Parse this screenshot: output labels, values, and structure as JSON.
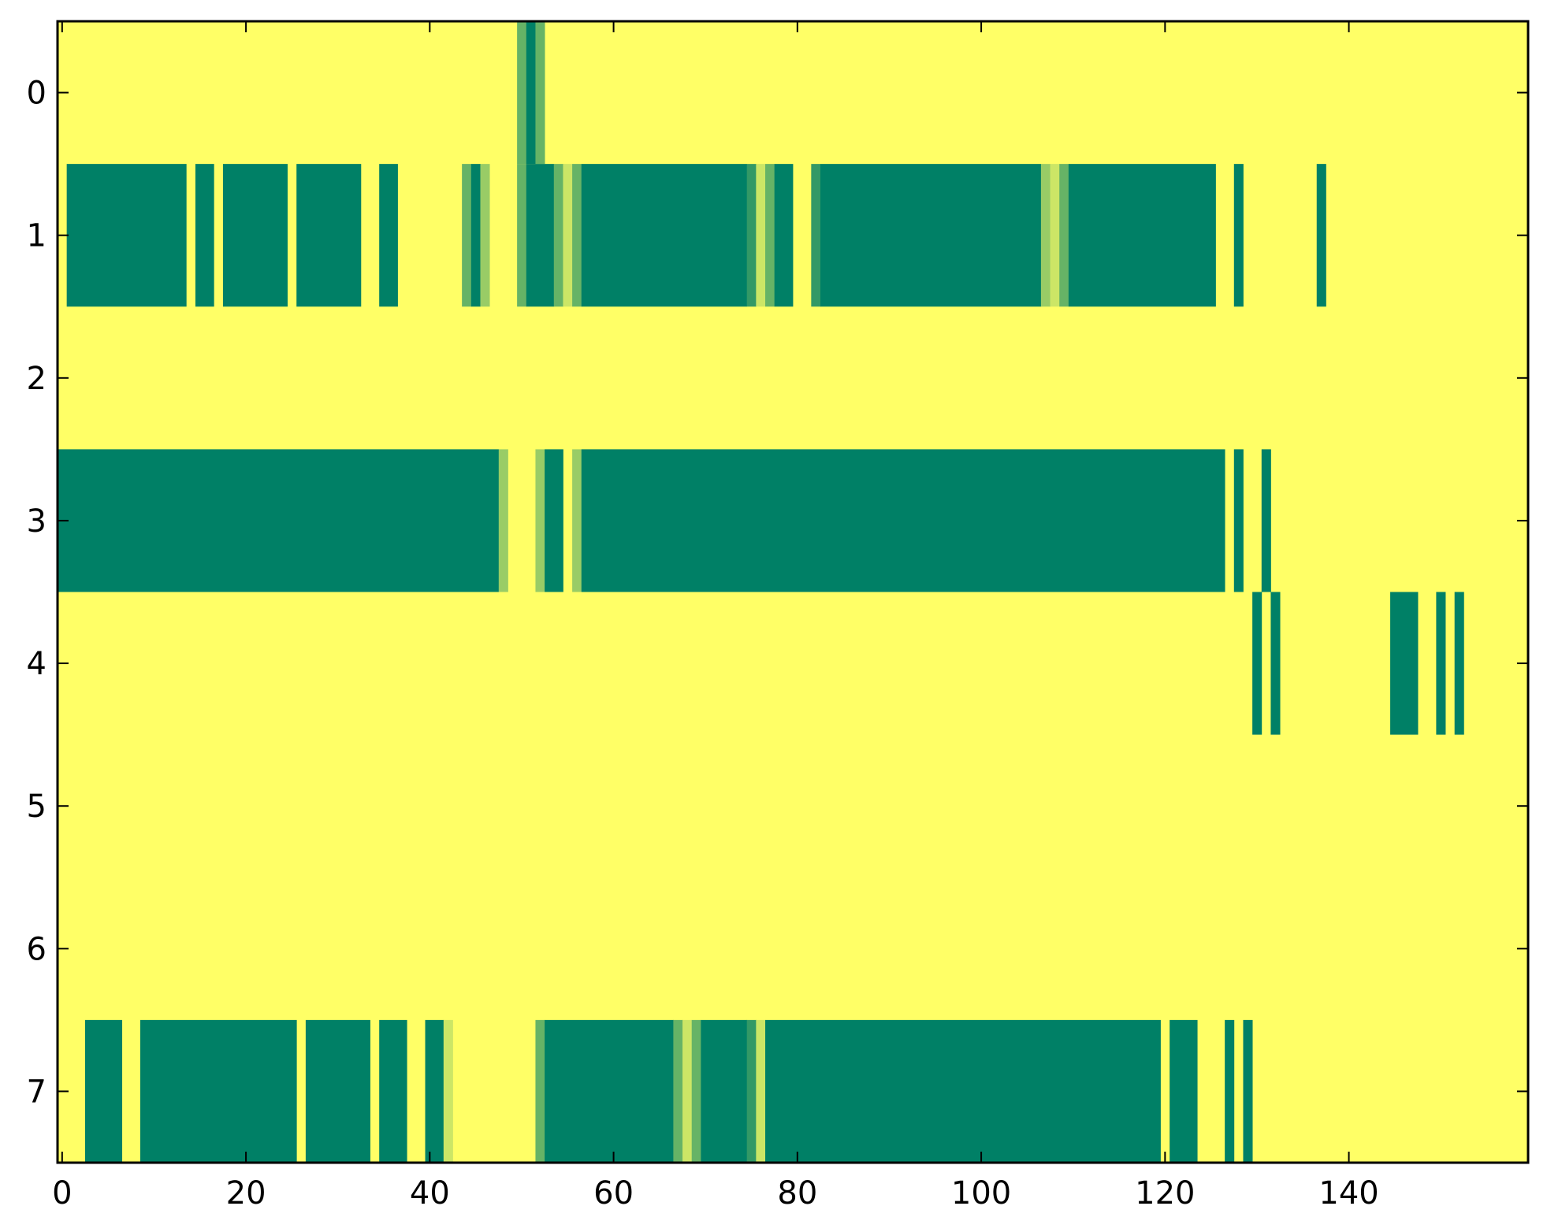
{
  "chart_data": {
    "type": "heatmap",
    "title": "",
    "xlabel": "",
    "ylabel": "",
    "xlim": [
      -0.5,
      159.5
    ],
    "ylim": [
      7.5,
      -0.5
    ],
    "x_ticks": [
      0,
      20,
      40,
      60,
      80,
      100,
      120,
      140
    ],
    "x_tick_labels": [
      "0",
      "20",
      "40",
      "60",
      "80",
      "100",
      "120",
      "140"
    ],
    "y_ticks": [
      0,
      1,
      2,
      3,
      4,
      5,
      6,
      7
    ],
    "y_tick_labels": [
      "0",
      "1",
      "2",
      "3",
      "4",
      "5",
      "6",
      "7"
    ],
    "grid": false,
    "legend": "none",
    "colormap": "summer_r",
    "colors": {
      "low": "#ffff66",
      "high": "#008066",
      "mid_light": "#e5f266",
      "mid": "#99cc66"
    },
    "value_range": [
      0,
      1
    ],
    "note_background_value": 0,
    "rows": [
      {
        "row": 0,
        "segments": [
          [
            50,
            50,
            0.6
          ],
          [
            51,
            51,
            1.0
          ],
          [
            52,
            52,
            0.6
          ]
        ]
      },
      {
        "row": 1,
        "segments": [
          [
            1,
            13,
            1.0
          ],
          [
            15,
            16,
            1.0
          ],
          [
            18,
            24,
            1.0
          ],
          [
            26,
            32,
            1.0
          ],
          [
            35,
            36,
            1.0
          ],
          [
            44,
            44,
            0.6
          ],
          [
            45,
            45,
            1.0
          ],
          [
            46,
            46,
            0.4
          ],
          [
            50,
            50,
            0.6
          ],
          [
            51,
            53,
            1.0
          ],
          [
            54,
            54,
            0.6
          ],
          [
            55,
            55,
            0.2
          ],
          [
            56,
            56,
            0.6
          ],
          [
            57,
            74,
            1.0
          ],
          [
            75,
            75,
            0.8
          ],
          [
            76,
            76,
            0.2
          ],
          [
            77,
            77,
            0.6
          ],
          [
            78,
            79,
            1.0
          ],
          [
            82,
            82,
            0.8
          ],
          [
            83,
            106,
            1.0
          ],
          [
            107,
            107,
            0.4
          ],
          [
            108,
            108,
            0.2
          ],
          [
            109,
            109,
            0.6
          ],
          [
            110,
            125,
            1.0
          ],
          [
            128,
            128,
            1.0
          ],
          [
            137,
            137,
            1.0
          ]
        ]
      },
      {
        "row": 2,
        "segments": []
      },
      {
        "row": 3,
        "segments": [
          [
            0,
            47,
            1.0
          ],
          [
            48,
            48,
            0.4
          ],
          [
            52,
            52,
            0.4
          ],
          [
            53,
            54,
            1.0
          ],
          [
            56,
            56,
            0.4
          ],
          [
            57,
            126,
            1.0
          ],
          [
            128,
            128,
            1.0
          ],
          [
            131,
            131,
            1.0
          ]
        ]
      },
      {
        "row": 4,
        "segments": [
          [
            130,
            130,
            1.0
          ],
          [
            132,
            132,
            1.0
          ],
          [
            145,
            147,
            1.0
          ],
          [
            150,
            150,
            1.0
          ],
          [
            152,
            152,
            1.0
          ]
        ]
      },
      {
        "row": 5,
        "segments": []
      },
      {
        "row": 6,
        "segments": []
      },
      {
        "row": 7,
        "segments": [
          [
            3,
            6,
            1.0
          ],
          [
            9,
            25,
            1.0
          ],
          [
            27,
            33,
            1.0
          ],
          [
            35,
            37,
            1.0
          ],
          [
            40,
            41,
            1.0
          ],
          [
            42,
            42,
            0.2
          ],
          [
            52,
            52,
            0.6
          ],
          [
            53,
            66,
            1.0
          ],
          [
            67,
            67,
            0.6
          ],
          [
            68,
            68,
            0.2
          ],
          [
            69,
            69,
            0.6
          ],
          [
            70,
            74,
            1.0
          ],
          [
            75,
            75,
            0.8
          ],
          [
            76,
            76,
            0.2
          ],
          [
            77,
            119,
            1.0
          ],
          [
            121,
            123,
            1.0
          ],
          [
            127,
            127,
            1.0
          ],
          [
            129,
            129,
            1.0
          ]
        ]
      }
    ]
  }
}
